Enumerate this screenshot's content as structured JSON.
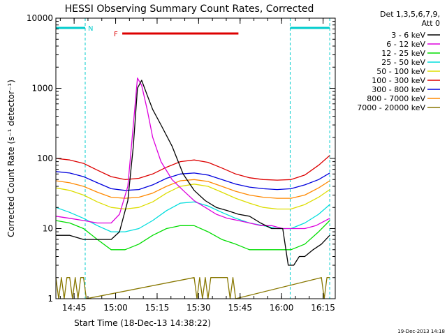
{
  "chart_data": {
    "type": "line",
    "title": "HESSI Observing Summary Count Rates, Corrected",
    "xlabel": "Start Time (18-Dec-13 14:38:22)",
    "ylabel": "Corrected Count Rate (s⁻¹ detector⁻¹)",
    "x_unit": "minutes since 14:38:22",
    "xlim": [
      0,
      101
    ],
    "ylim": [
      1,
      10000
    ],
    "y_scale": "log",
    "x_ticks": [
      {
        "label": "14:45",
        "value": 6.6
      },
      {
        "label": "15:00",
        "value": 21.6
      },
      {
        "label": "15:15",
        "value": 36.6
      },
      {
        "label": "15:30",
        "value": 51.6
      },
      {
        "label": "15:45",
        "value": 66.6
      },
      {
        "label": "16:00",
        "value": 81.6
      },
      {
        "label": "16:15",
        "value": 96.6
      }
    ],
    "y_ticks": [
      {
        "label": "1",
        "value": 1
      },
      {
        "label": "10",
        "value": 10
      },
      {
        "label": "100",
        "value": 100
      },
      {
        "label": "1000",
        "value": 1000
      },
      {
        "label": "10000",
        "value": 10000
      }
    ],
    "legend_header": [
      "Det 1,3,5,6,7,9,",
      "Att 0"
    ],
    "legend_position": "right",
    "annotations": {
      "night_label": "N",
      "flare_label": "F",
      "night_intervals": [
        [
          0,
          10.6
        ],
        [
          84.7,
          99
        ]
      ],
      "flare_interval": [
        24,
        66
      ],
      "date_stamp": "19-Dec-2013 14:18"
    },
    "series": [
      {
        "name": "3 - 6 keV",
        "color": "#000000",
        "x": [
          0,
          5,
          10,
          15,
          20,
          23,
          26,
          28,
          29.5,
          31,
          33,
          35,
          38,
          42,
          46,
          50,
          54,
          58,
          62,
          66,
          70,
          74,
          78,
          82,
          84,
          86,
          88,
          90,
          93,
          96,
          99
        ],
        "values": [
          8,
          8,
          7,
          7,
          7,
          9,
          25,
          150,
          1000,
          1300,
          800,
          500,
          300,
          150,
          60,
          35,
          25,
          20,
          18,
          16,
          15,
          12,
          10,
          10,
          3,
          3,
          4,
          4,
          5,
          6,
          8
        ]
      },
      {
        "name": "6 - 12 keV",
        "color": "#dd00dd",
        "x": [
          0,
          5,
          10,
          15,
          20,
          23,
          26,
          28,
          29.5,
          31,
          33,
          35,
          38,
          42,
          46,
          50,
          54,
          58,
          62,
          66,
          70,
          74,
          78,
          82,
          86,
          90,
          94,
          99
        ],
        "values": [
          15,
          14,
          13,
          12,
          12,
          16,
          40,
          300,
          1400,
          1100,
          500,
          200,
          90,
          50,
          35,
          25,
          20,
          16,
          14,
          13,
          12,
          11,
          11,
          10,
          10,
          10,
          11,
          14
        ]
      },
      {
        "name": "12 - 25 keV",
        "color": "#00dd00",
        "x": [
          0,
          5,
          10,
          15,
          20,
          25,
          30,
          35,
          40,
          45,
          50,
          55,
          60,
          65,
          70,
          75,
          80,
          85,
          90,
          95,
          99
        ],
        "values": [
          13,
          12,
          10,
          7,
          5,
          5,
          6,
          8,
          10,
          11,
          11,
          9,
          7,
          6,
          5,
          5,
          5,
          5,
          6,
          9,
          13
        ]
      },
      {
        "name": "25 - 50 keV",
        "color": "#00dddd",
        "x": [
          0,
          5,
          10,
          15,
          20,
          25,
          30,
          35,
          40,
          45,
          50,
          55,
          60,
          65,
          70,
          75,
          80,
          85,
          90,
          95,
          99
        ],
        "values": [
          20,
          17,
          14,
          11,
          9,
          9,
          10,
          13,
          18,
          23,
          24,
          21,
          17,
          14,
          12,
          11,
          10,
          10,
          12,
          16,
          22
        ]
      },
      {
        "name": "50 - 100 keV",
        "color": "#dddd00",
        "x": [
          0,
          5,
          10,
          15,
          20,
          25,
          30,
          35,
          40,
          45,
          50,
          55,
          60,
          65,
          70,
          75,
          80,
          85,
          90,
          95,
          99
        ],
        "values": [
          38,
          35,
          30,
          24,
          20,
          19,
          20,
          24,
          32,
          40,
          43,
          40,
          33,
          27,
          23,
          20,
          19,
          19,
          22,
          28,
          36
        ]
      },
      {
        "name": "100 - 300 keV",
        "color": "#dd0000",
        "x": [
          0,
          5,
          10,
          15,
          20,
          25,
          30,
          35,
          40,
          45,
          50,
          55,
          60,
          65,
          70,
          75,
          80,
          85,
          90,
          95,
          99
        ],
        "values": [
          100,
          95,
          85,
          68,
          55,
          50,
          52,
          60,
          75,
          90,
          95,
          88,
          73,
          60,
          53,
          50,
          49,
          50,
          58,
          80,
          110
        ]
      },
      {
        "name": "300 - 800 keV",
        "color": "#0000dd",
        "x": [
          0,
          5,
          10,
          15,
          20,
          25,
          30,
          35,
          40,
          45,
          50,
          55,
          60,
          65,
          70,
          75,
          80,
          85,
          90,
          95,
          99
        ],
        "values": [
          65,
          62,
          55,
          45,
          37,
          35,
          36,
          42,
          52,
          60,
          62,
          58,
          50,
          43,
          39,
          37,
          36,
          37,
          42,
          50,
          62
        ]
      },
      {
        "name": "800 - 7000 keV",
        "color": "#ff8800",
        "x": [
          0,
          5,
          10,
          15,
          20,
          25,
          30,
          35,
          40,
          45,
          50,
          55,
          60,
          65,
          70,
          75,
          80,
          85,
          90,
          95,
          99
        ],
        "values": [
          48,
          45,
          40,
          33,
          28,
          27,
          28,
          32,
          40,
          48,
          50,
          47,
          40,
          34,
          30,
          28,
          27,
          27,
          30,
          38,
          48
        ]
      },
      {
        "name": "7000 - 20000 keV",
        "color": "#887700",
        "x": [
          0,
          1,
          2,
          3,
          4,
          5,
          6,
          7,
          8,
          9,
          10,
          11,
          50,
          51,
          52,
          53,
          54,
          55,
          56,
          62,
          63,
          64,
          65,
          96,
          97,
          98,
          99
        ],
        "values": [
          2,
          1,
          2,
          1,
          2,
          2,
          1,
          2,
          1,
          2,
          2,
          1,
          2,
          1,
          2,
          1,
          2,
          1,
          2,
          2,
          1,
          2,
          1,
          2,
          1,
          2,
          2
        ]
      }
    ]
  }
}
